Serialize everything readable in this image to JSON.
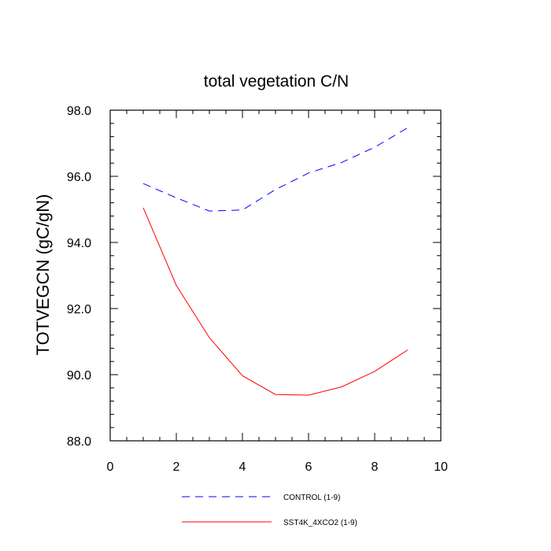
{
  "chart_data": {
    "type": "line",
    "title": "total vegetation C/N",
    "xlabel": "",
    "ylabel": "TOTVEGCN  (gC/gN)",
    "xlim": [
      0,
      10
    ],
    "ylim": [
      88,
      98
    ],
    "x_ticks": [
      0,
      2,
      4,
      6,
      8,
      10
    ],
    "x_tick_labels": [
      "0",
      "2",
      "4",
      "6",
      "8",
      "10"
    ],
    "y_ticks": [
      88,
      90,
      92,
      94,
      96,
      98
    ],
    "y_tick_labels": [
      "88.0",
      "90.0",
      "92.0",
      "94.0",
      "96.0",
      "98.0"
    ],
    "x": [
      1,
      2,
      3,
      4,
      5,
      6,
      7,
      8,
      9
    ],
    "series": [
      {
        "name": "CONTROL (1-9)",
        "color": "#0000ff",
        "style": "dashed",
        "values": [
          95.78,
          95.35,
          94.95,
          94.98,
          95.6,
          96.1,
          96.42,
          96.88,
          97.47
        ]
      },
      {
        "name": "SST4K_4XCO2 (1-9)",
        "color": "#ff0000",
        "style": "solid",
        "values": [
          95.05,
          92.7,
          91.12,
          89.97,
          89.4,
          89.38,
          89.63,
          90.1,
          90.75
        ]
      }
    ],
    "grid": false,
    "legend_position": "bottom"
  }
}
